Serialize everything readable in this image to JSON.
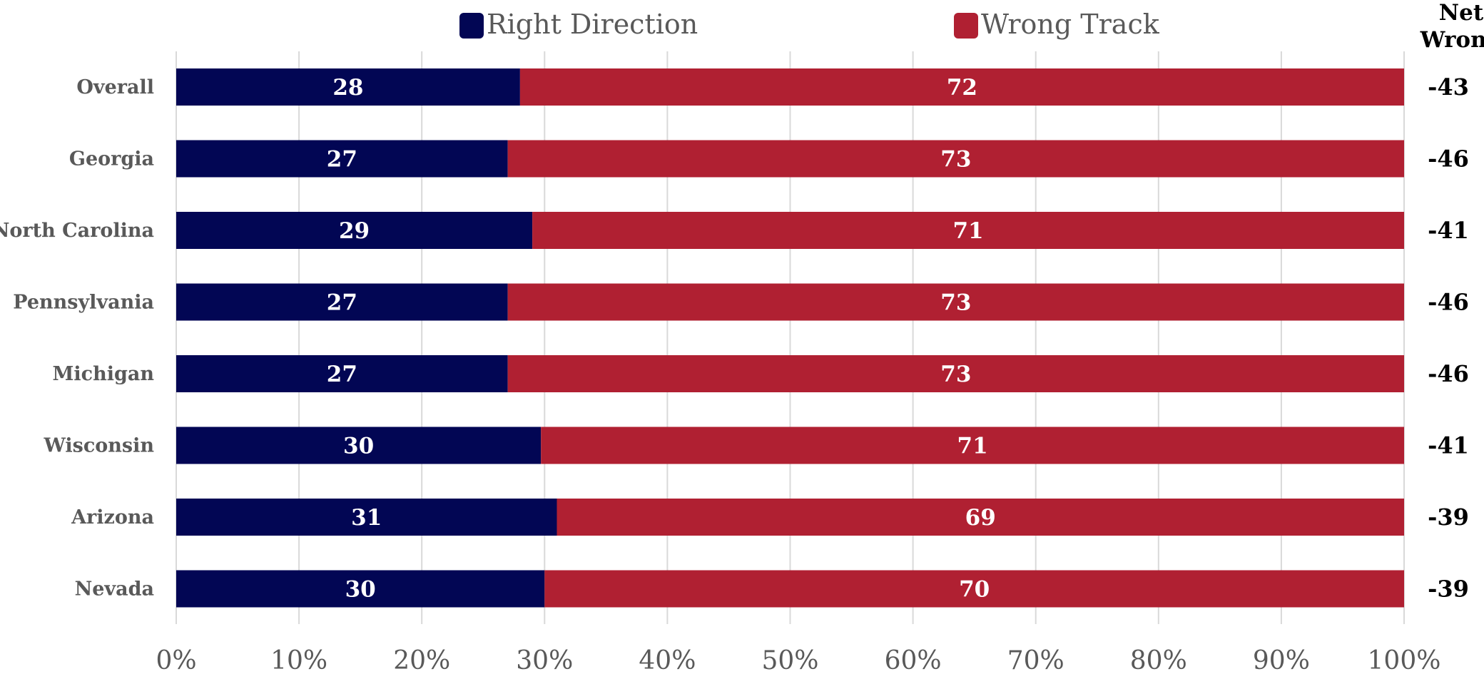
{
  "chart_data": {
    "type": "bar",
    "orientation": "horizontal",
    "stacked": true,
    "categories": [
      "Overall",
      "Georgia",
      "North Carolina",
      "Pennsylvania",
      "Michigan",
      "Wisconsin",
      "Arizona",
      "Nevada"
    ],
    "series": [
      {
        "name": "Right Direction",
        "color": "#020654",
        "values": [
          28,
          27,
          29,
          27,
          27,
          30,
          31,
          30
        ]
      },
      {
        "name": "Wrong Track",
        "color": "#B02032",
        "values": [
          72,
          73,
          71,
          73,
          73,
          71,
          69,
          70
        ]
      }
    ],
    "net_wrong": {
      "header": [
        "Net",
        "Wrong"
      ],
      "values": [
        "-43",
        "-46",
        "-41",
        "-46",
        "-46",
        "-41",
        "-39",
        "-39"
      ]
    },
    "x_ticks": [
      "0%",
      "10%",
      "20%",
      "30%",
      "40%",
      "50%",
      "60%",
      "70%",
      "80%",
      "90%",
      "100%"
    ],
    "xlim": [
      0,
      100
    ],
    "grid": true,
    "legend_position": "top"
  }
}
